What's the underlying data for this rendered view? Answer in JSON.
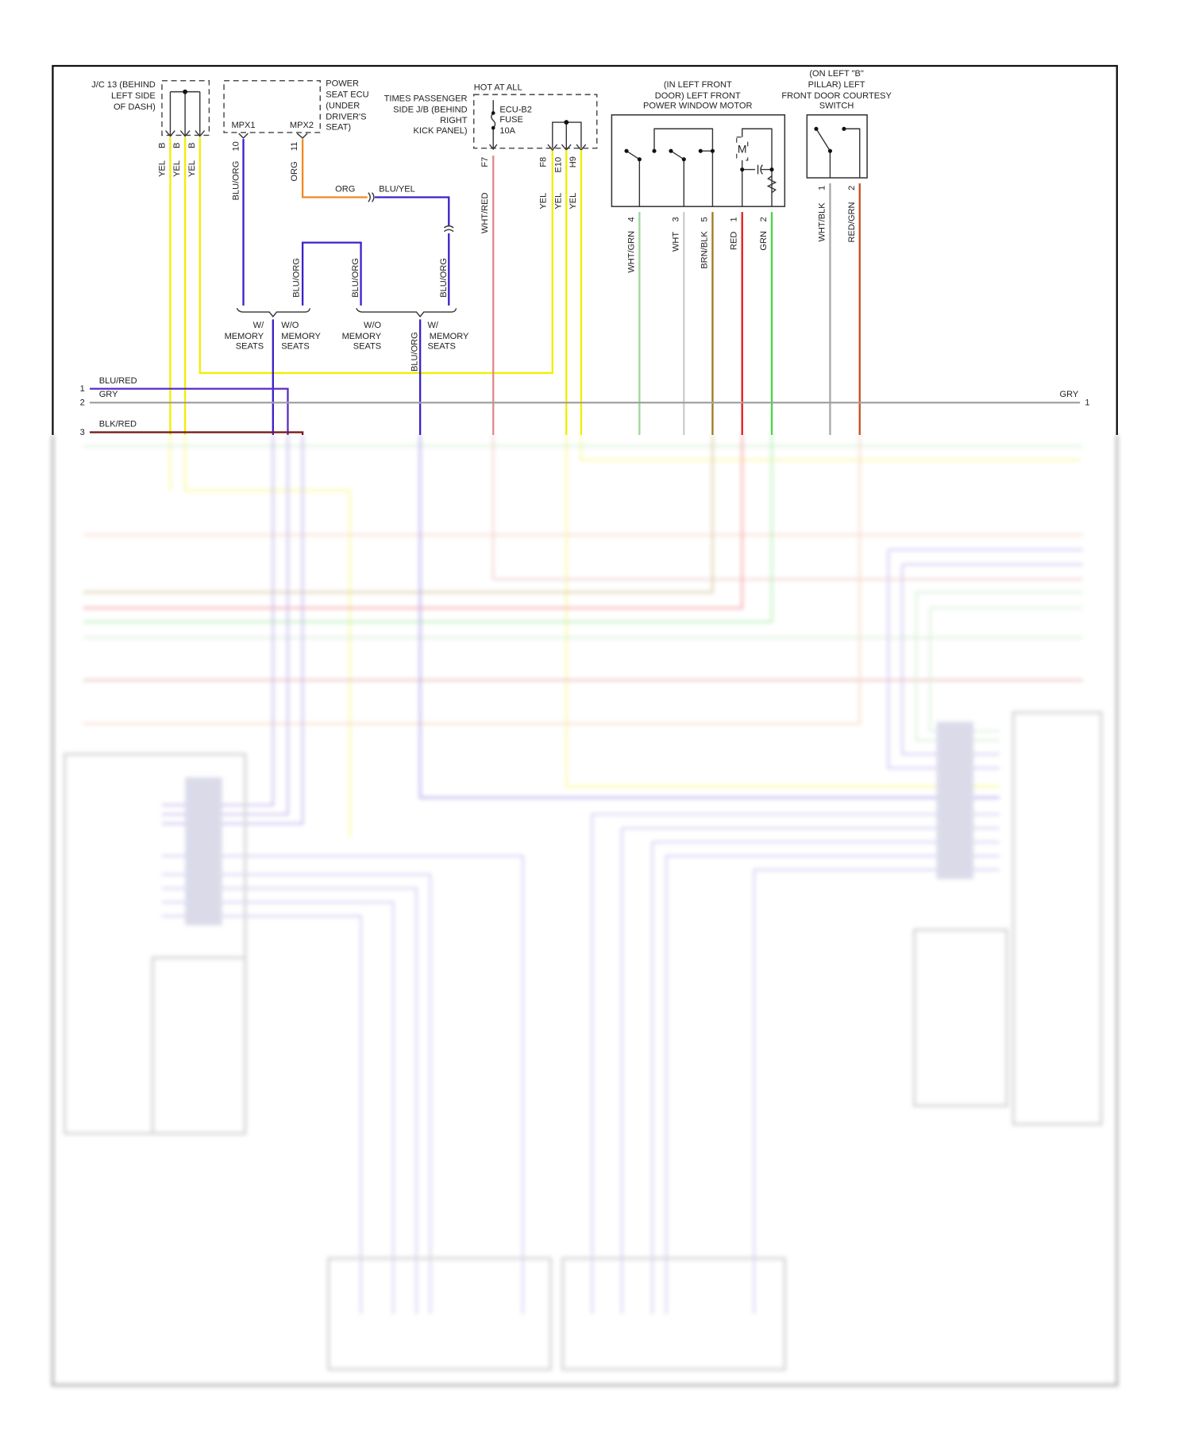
{
  "diagram": {
    "jc13": {
      "title": [
        "J/C 13 (BEHIND",
        "LEFT SIDE",
        "OF DASH)"
      ],
      "pins": [
        "B",
        "B",
        "B"
      ],
      "wires": [
        "YEL",
        "YEL",
        "YEL"
      ]
    },
    "power_seat_ecu": {
      "title": [
        "POWER",
        "SEAT ECU",
        "(UNDER",
        "DRIVER'S",
        "SEAT)"
      ],
      "terminals": [
        "MPX1",
        "MPX2"
      ],
      "pins": [
        "10",
        "11"
      ],
      "wires": [
        "BLU/ORG",
        "ORG"
      ]
    },
    "splice": {
      "org_label": "ORG",
      "bluyel_label": "BLU/YEL",
      "bluorg_labels": [
        "BLU/ORG",
        "BLU/ORG",
        "BLU/ORG",
        "BLU/ORG"
      ]
    },
    "memory_options": {
      "w_memory_left": [
        "W/",
        "MEMORY",
        "SEATS"
      ],
      "wo_memory_left": [
        "W/O",
        "MEMORY",
        "SEATS"
      ],
      "wo_memory_right": [
        "W/O",
        "MEMORY",
        "SEATS"
      ],
      "w_memory_right": [
        "W/",
        "MEMORY",
        "SEATS"
      ]
    },
    "junction_block": {
      "hot_label": "HOT AT ALL",
      "title": [
        "TIMES PASSENGER",
        "SIDE J/B (BEHIND",
        "RIGHT",
        "KICK PANEL)"
      ],
      "fuse": [
        "ECU-B2",
        "FUSE",
        "10A"
      ],
      "pins": [
        "F7",
        "F8",
        "E10",
        "H9"
      ],
      "wires": [
        "WHT/RED",
        "YEL",
        "YEL",
        "YEL"
      ]
    },
    "window_motor": {
      "title": [
        "(IN LEFT FRONT",
        "DOOR) LEFT FRONT",
        "POWER WINDOW MOTOR"
      ],
      "motor_symbol": "M",
      "pins": [
        "4",
        "3",
        "5",
        "1",
        "2"
      ],
      "wires": [
        "WHT/GRN",
        "WHT",
        "BRN/BLK",
        "RED",
        "GRN"
      ]
    },
    "courtesy_switch": {
      "title": [
        "(ON LEFT \"B\"",
        "PILLAR) LEFT",
        "FRONT DOOR COURTESY",
        "SWITCH"
      ],
      "pins": [
        "1",
        "2"
      ],
      "wires": [
        "WHT/BLK",
        "RED/GRN"
      ]
    },
    "left_connector": {
      "pins": [
        "1",
        "2",
        "3"
      ],
      "wires": [
        "BLU/RED",
        "GRY",
        "BLK/RED"
      ]
    },
    "right_connector": {
      "pin": "1",
      "wire": "GRY"
    }
  },
  "wire_colors": {
    "YEL": "#f2ee00",
    "BLU/ORG": "#3a22c8",
    "ORG": "#f08a20",
    "BLU/YEL": "#3a22c8",
    "WHT/RED": "#e08a8a",
    "WHT/GRN": "#9ed69e",
    "WHT": "#cccccc",
    "BRN/BLK": "#a07a20",
    "RED": "#e81818",
    "GRN": "#44d844",
    "WHT/BLK": "#a8a8a8",
    "RED/GRN": "#c8501c",
    "BLU/RED": "#5a2ec8",
    "GRY": "#a0a0a0",
    "BLK/RED": "#7a1a1a"
  }
}
